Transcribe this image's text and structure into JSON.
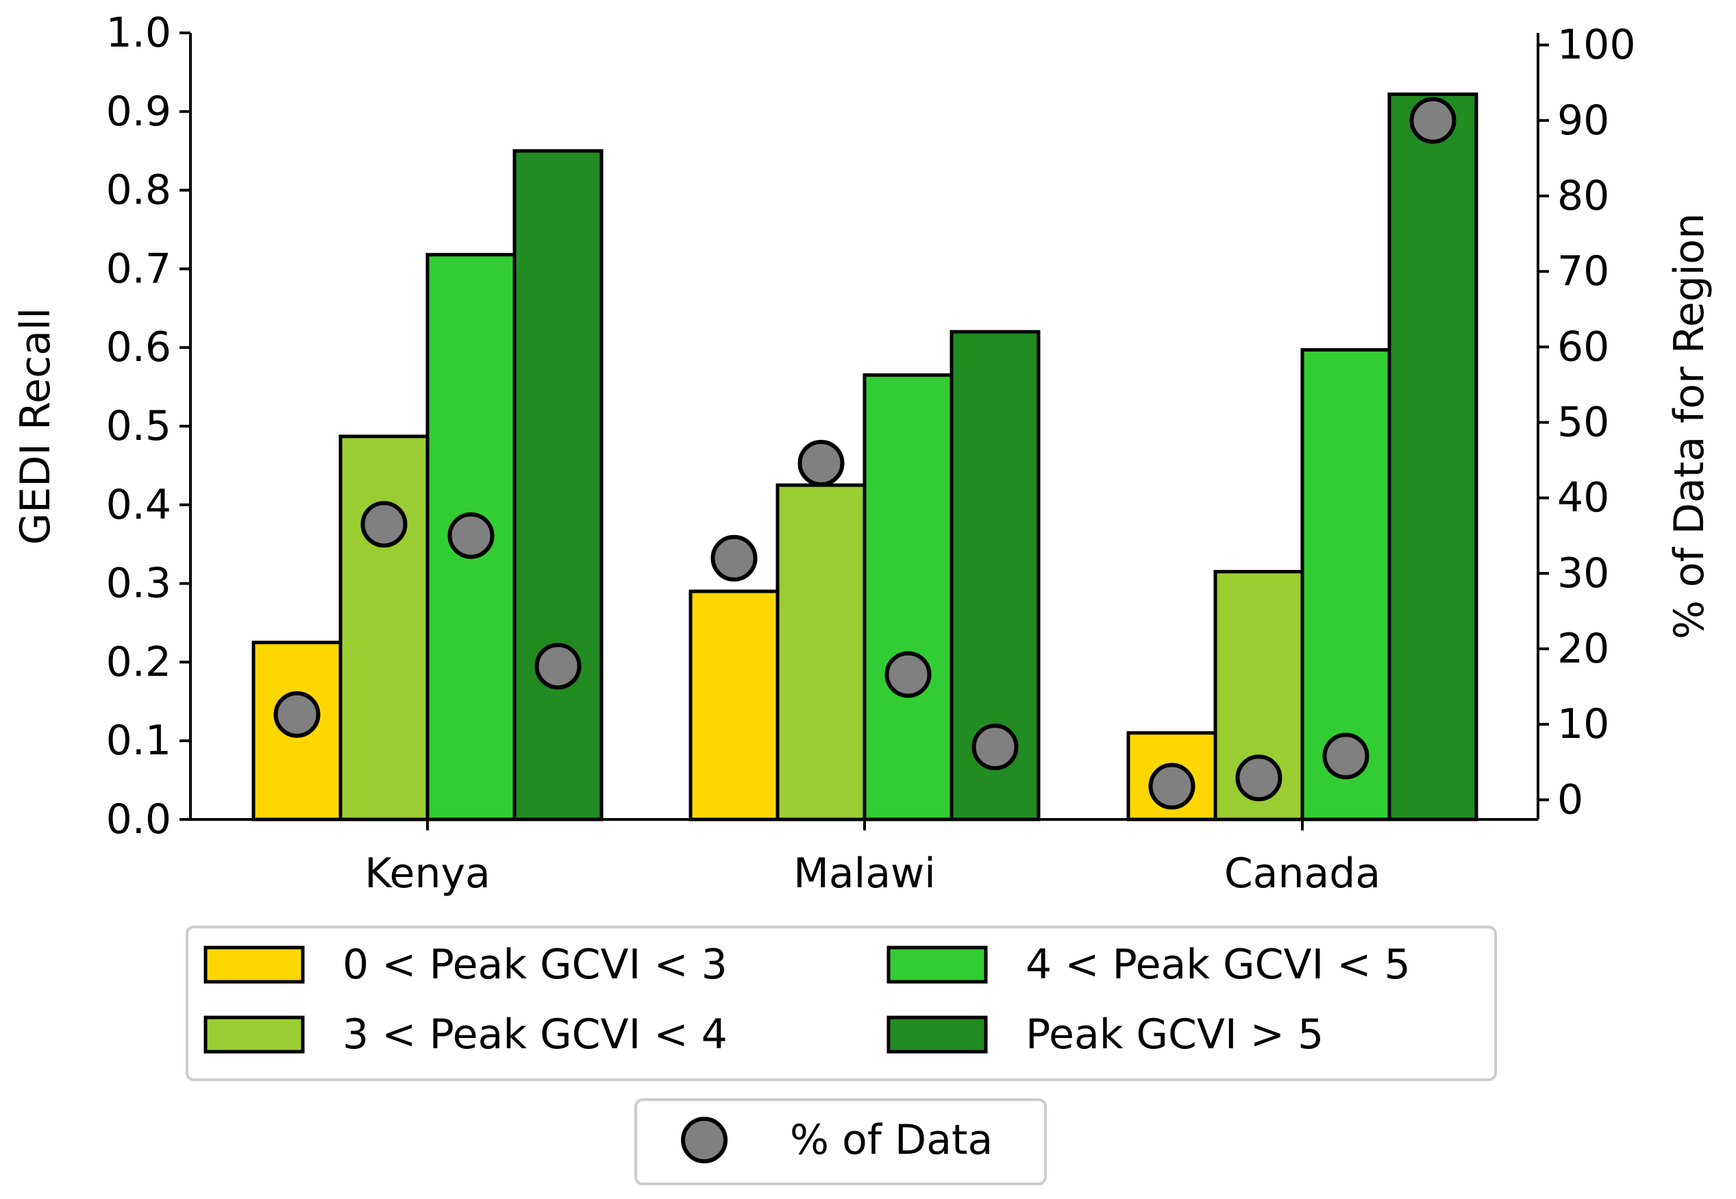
{
  "chart_data": {
    "type": "bar",
    "categories": [
      "Kenya",
      "Malawi",
      "Canada"
    ],
    "series": [
      {
        "name": "0 < Peak GCVI < 3",
        "color": "#FFD700",
        "values": [
          0.225,
          0.29,
          0.11
        ]
      },
      {
        "name": "3 < Peak GCVI < 4",
        "color": "#9ACD32",
        "values": [
          0.487,
          0.425,
          0.315
        ]
      },
      {
        "name": "4 < Peak GCVI < 5",
        "color": "#32CD32",
        "values": [
          0.718,
          0.565,
          0.597
        ]
      },
      {
        "name": "Peak GCVI > 5",
        "color": "#228B22",
        "values": [
          0.85,
          0.62,
          0.922
        ]
      }
    ],
    "percent_series": {
      "name": "% of Data",
      "color": "#808080",
      "values": [
        [
          11.3,
          36.5,
          35.0,
          17.7
        ],
        [
          32.0,
          44.6,
          16.6,
          7.0
        ],
        [
          1.8,
          2.9,
          5.8,
          90.0
        ]
      ]
    },
    "ylabel": "GEDI Recall",
    "ylim": [
      0.0,
      1.0
    ],
    "yticks": [
      "0.0",
      "0.1",
      "0.2",
      "0.3",
      "0.4",
      "0.5",
      "0.6",
      "0.7",
      "0.8",
      "0.9",
      "1.0"
    ],
    "y2label": "% of Data for Region",
    "y2lim": [
      -2.6,
      101.6
    ],
    "y2ticks": [
      "0",
      "10",
      "20",
      "30",
      "40",
      "50",
      "60",
      "70",
      "80",
      "90",
      "100"
    ],
    "legend": "below chart, two boxes",
    "grid": false
  }
}
